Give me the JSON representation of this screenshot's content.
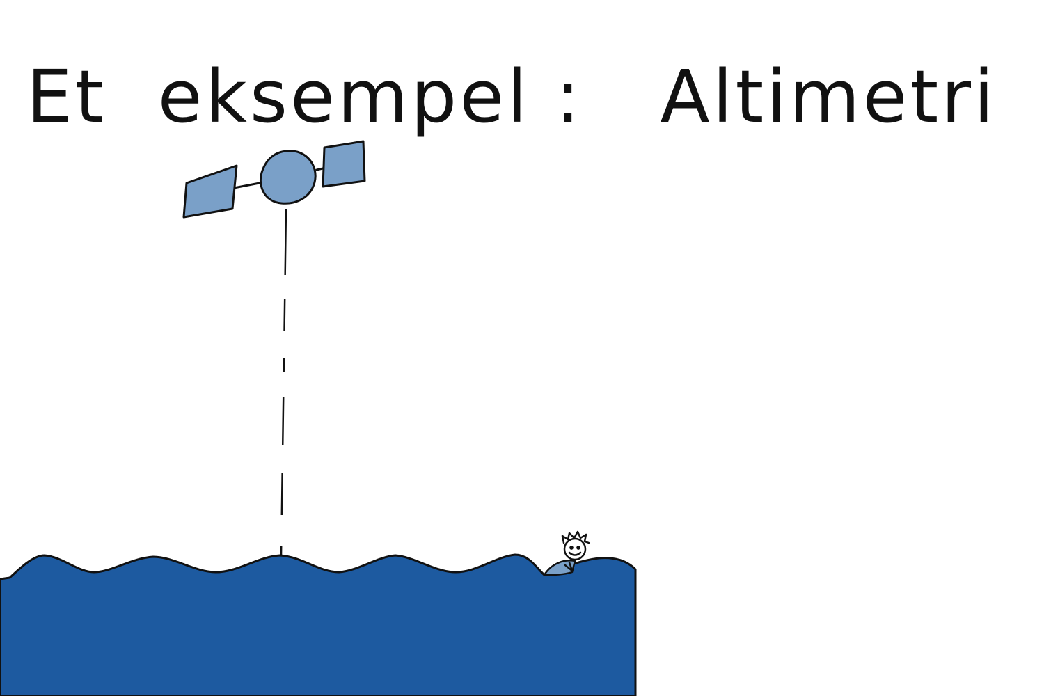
{
  "title": "Et  eksempel :   Altimetri",
  "colors": {
    "sea": "#1d5aa0",
    "satellite": "#7aa0c8",
    "outline": "#111111",
    "background": "#ffffff"
  },
  "icons": [
    "satellite-icon",
    "swimmer-icon"
  ]
}
